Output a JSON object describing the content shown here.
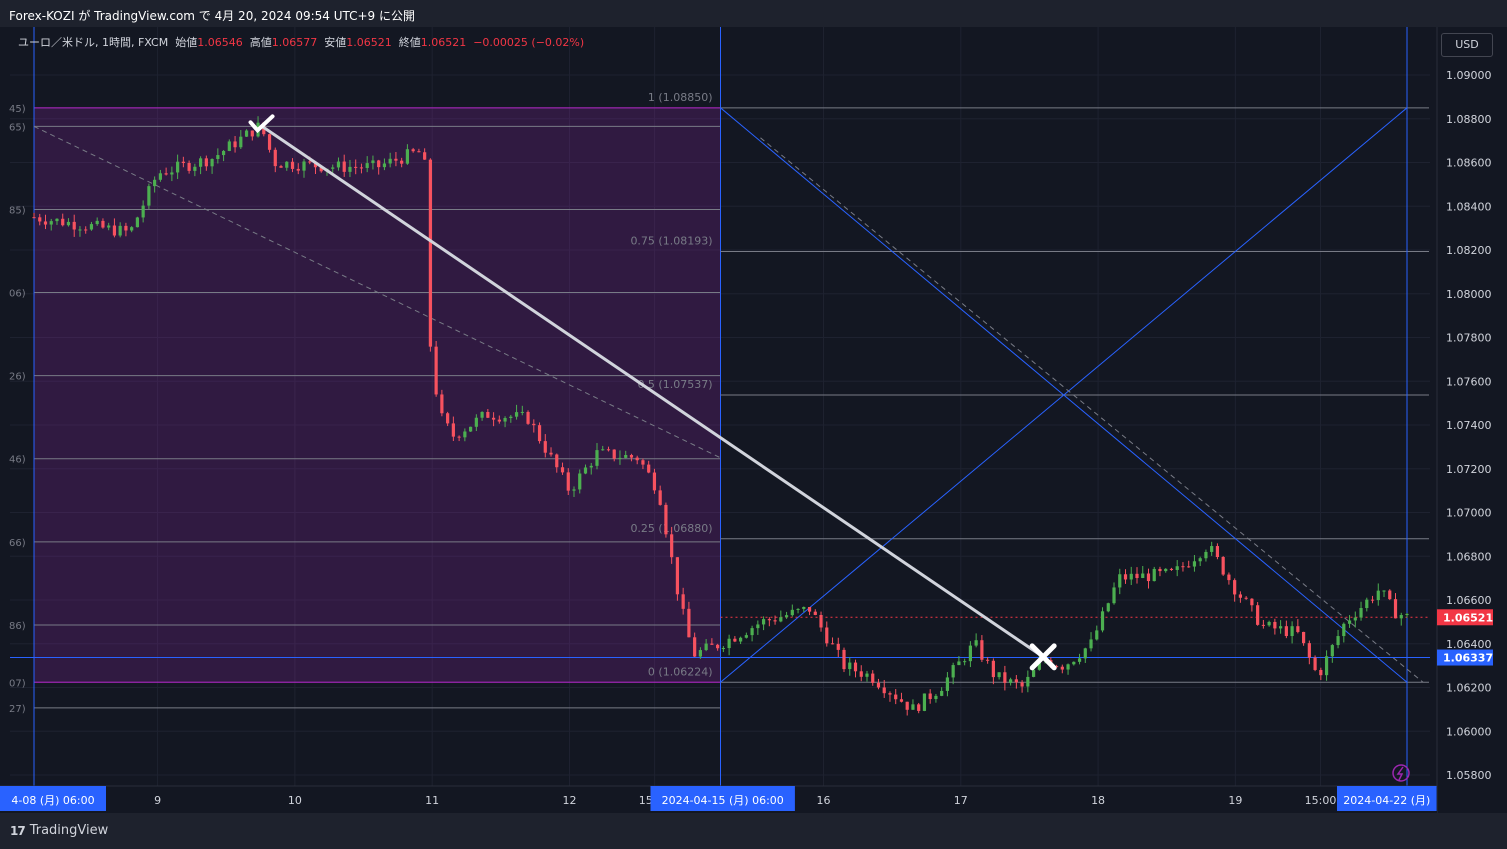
{
  "header": {
    "published": "Forex-KOZI が TradingView.com で 4月 20, 2024 09:54 UTC+9 に公開"
  },
  "legend": {
    "symbol": "ユーロ／米ドル, 1時間, FXCM",
    "open_label": "始値",
    "open": "1.06546",
    "high_label": "高値",
    "high": "1.06577",
    "low_label": "安値",
    "low": "1.06521",
    "close_label": "終値",
    "close": "1.06521",
    "change": "−0.00025 (−0.02%)"
  },
  "currency": "USD",
  "footer": {
    "brand": "TradingView",
    "logo": "17"
  },
  "chart_data": {
    "type": "candlestick",
    "symbol": "EURUSD",
    "timeframe": "1時間",
    "ylim": [
      1.0575,
      1.0913
    ],
    "y_ticks": [
      "1.09000",
      "1.08800",
      "1.08600",
      "1.08400",
      "1.08200",
      "1.08000",
      "1.07800",
      "1.07600",
      "1.07400",
      "1.07200",
      "1.07000",
      "1.06800",
      "1.06600",
      "1.06400",
      "1.06200",
      "1.06000",
      "1.05800"
    ],
    "x_labels": [
      {
        "text": "4-08 (月)  06:00",
        "x": 0,
        "boxed": true
      },
      {
        "text": "9",
        "x": 0.9
      },
      {
        "text": "10",
        "x": 1.9
      },
      {
        "text": "11",
        "x": 2.9
      },
      {
        "text": "12",
        "x": 3.9
      },
      {
        "text": "15:00",
        "x": 4.52
      },
      {
        "text": "2024-04-15 (月)  06:00",
        "x": 5,
        "boxed": true
      },
      {
        "text": "16",
        "x": 5.75
      },
      {
        "text": "17",
        "x": 6.75
      },
      {
        "text": "18",
        "x": 7.75
      },
      {
        "text": "19",
        "x": 8.75
      },
      {
        "text": "15:00",
        "x": 9.37
      },
      {
        "text": "2024-04-22 (月)",
        "x": 10,
        "boxed": true
      }
    ],
    "last_price": {
      "value": 1.06521,
      "label": "1.06521",
      "color": "#f23645"
    },
    "marker_price": {
      "value": 1.06337,
      "label": "1.06337",
      "color": "#2962ff"
    },
    "fib_left": {
      "x0": 0,
      "x1": 5,
      "color": "#9c27b0",
      "levels": [
        1.0885,
        1.08765,
        1.08385,
        1.08006,
        1.07626,
        1.07246,
        1.06866,
        1.06486,
        1.06224,
        1.06107
      ],
      "left_labels": [
        "45)",
        "65)",
        "85)",
        "06)",
        "26)",
        "46)",
        "66)",
        "86)",
        "07)",
        "27)"
      ]
    },
    "fib_right": {
      "x0": 5,
      "x1": 10,
      "levels": [
        {
          "ratio": "1",
          "value": 1.0885,
          "label": "1 (1.08850)"
        },
        {
          "ratio": "0.75",
          "value": 1.08193,
          "label": "0.75 (1.08193)"
        },
        {
          "ratio": "0.5",
          "value": 1.07537,
          "label": "0.5 (1.07537)"
        },
        {
          "ratio": "0.25",
          "value": 1.0688,
          "label": "0.25 (1.06880)"
        },
        {
          "ratio": "0",
          "value": 1.06224,
          "label": "0 (1.06224)"
        }
      ]
    },
    "trend_line": {
      "from": {
        "x": 1.65,
        "y": 1.0877
      },
      "to": {
        "x": 7.35,
        "y": 1.0634
      },
      "start_marker": "check",
      "end_marker": "cross"
    },
    "key_points": [
      {
        "x": 0,
        "y": 1.0835
      },
      {
        "x": 0.7,
        "y": 1.0828
      },
      {
        "x": 0.9,
        "y": 1.0855
      },
      {
        "x": 1.3,
        "y": 1.0862
      },
      {
        "x": 1.65,
        "y": 1.0877
      },
      {
        "x": 1.75,
        "y": 1.086
      },
      {
        "x": 2.2,
        "y": 1.0858
      },
      {
        "x": 2.5,
        "y": 1.0858
      },
      {
        "x": 2.8,
        "y": 1.0865
      },
      {
        "x": 2.87,
        "y": 1.0855
      },
      {
        "x": 2.88,
        "y": 1.078
      },
      {
        "x": 2.95,
        "y": 1.0745
      },
      {
        "x": 3.05,
        "y": 1.0735
      },
      {
        "x": 3.3,
        "y": 1.0745
      },
      {
        "x": 3.6,
        "y": 1.0743
      },
      {
        "x": 3.9,
        "y": 1.071
      },
      {
        "x": 4.1,
        "y": 1.0727
      },
      {
        "x": 4.4,
        "y": 1.0725
      },
      {
        "x": 4.55,
        "y": 1.071
      },
      {
        "x": 4.7,
        "y": 1.066
      },
      {
        "x": 4.8,
        "y": 1.0635
      },
      {
        "x": 5.0,
        "y": 1.064
      },
      {
        "x": 5.3,
        "y": 1.065
      },
      {
        "x": 5.65,
        "y": 1.0656
      },
      {
        "x": 5.9,
        "y": 1.063
      },
      {
        "x": 6.1,
        "y": 1.0625
      },
      {
        "x": 6.4,
        "y": 1.061
      },
      {
        "x": 6.6,
        "y": 1.062
      },
      {
        "x": 6.85,
        "y": 1.064
      },
      {
        "x": 7.0,
        "y": 1.0625
      },
      {
        "x": 7.2,
        "y": 1.062
      },
      {
        "x": 7.35,
        "y": 1.0633
      },
      {
        "x": 7.5,
        "y": 1.063
      },
      {
        "x": 7.7,
        "y": 1.064
      },
      {
        "x": 7.9,
        "y": 1.067
      },
      {
        "x": 8.3,
        "y": 1.0672
      },
      {
        "x": 8.55,
        "y": 1.0685
      },
      {
        "x": 8.75,
        "y": 1.0665
      },
      {
        "x": 8.95,
        "y": 1.0648
      },
      {
        "x": 9.2,
        "y": 1.0645
      },
      {
        "x": 9.35,
        "y": 1.0625
      },
      {
        "x": 9.55,
        "y": 1.065
      },
      {
        "x": 9.8,
        "y": 1.0665
      },
      {
        "x": 9.9,
        "y": 1.0655
      },
      {
        "x": 10.0,
        "y": 1.06521
      }
    ]
  }
}
